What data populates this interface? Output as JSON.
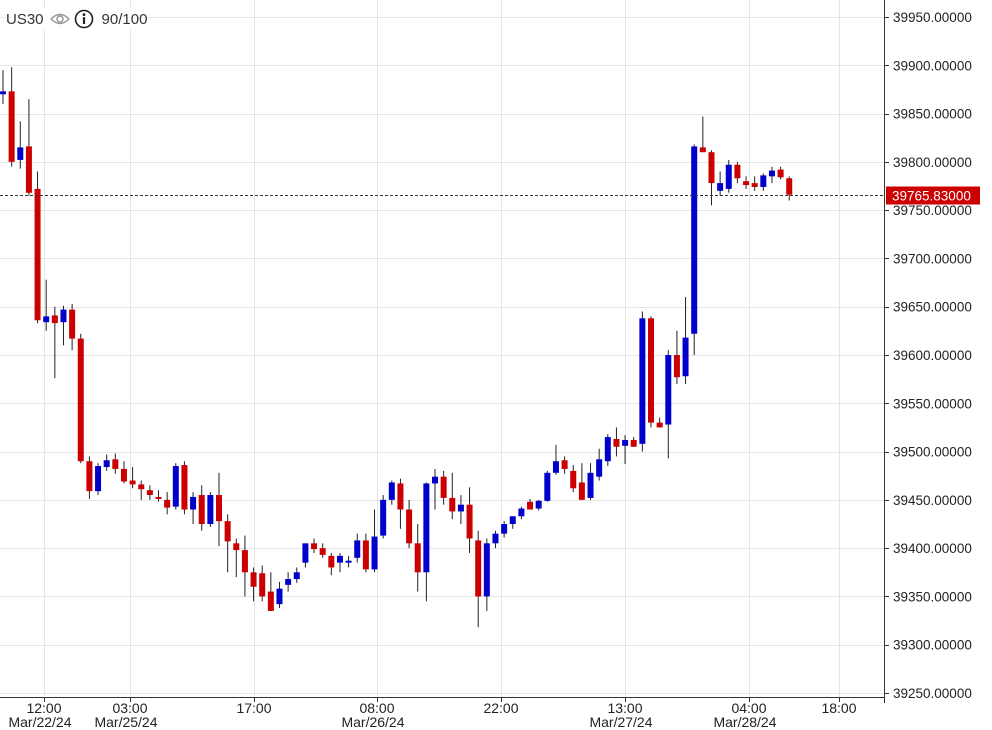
{
  "header": {
    "symbol": "US30",
    "visibility_icon": "eye-icon",
    "info_icon": "info-icon",
    "zoom": "90/100"
  },
  "colors": {
    "up": "#0000cc",
    "down": "#cc0000",
    "grid": "#e6e6e6",
    "price_tag_bg": "#cc0000",
    "price_tag_text": "#ffffff"
  },
  "chart_data": {
    "type": "candlestick",
    "grid": true,
    "ylim": [
      39250,
      39950
    ],
    "y_ticks": [
      "39950.00000",
      "39900.00000",
      "39850.00000",
      "39800.00000",
      "39750.00000",
      "39700.00000",
      "39650.00000",
      "39600.00000",
      "39550.00000",
      "39500.00000",
      "39450.00000",
      "39400.00000",
      "39350.00000",
      "39300.00000",
      "39250.00000"
    ],
    "x_ticks": [
      {
        "time": "12:00",
        "date": "Mar/22/24"
      },
      {
        "time": "03:00",
        "date": "Mar/25/24"
      },
      {
        "time": "17:00",
        "date": ""
      },
      {
        "time": "08:00",
        "date": "Mar/26/24"
      },
      {
        "time": "22:00",
        "date": ""
      },
      {
        "time": "13:00",
        "date": "Mar/27/24"
      },
      {
        "time": "04:00",
        "date": "Mar/28/24"
      },
      {
        "time": "18:00",
        "date": ""
      }
    ],
    "current_price": "39765.83000",
    "candles": [
      {
        "o": 39870,
        "h": 39895,
        "l": 39860,
        "c": 39873
      },
      {
        "o": 39873,
        "h": 39898,
        "l": 39795,
        "c": 39800
      },
      {
        "o": 39802,
        "h": 39842,
        "l": 39793,
        "c": 39815
      },
      {
        "o": 39816,
        "h": 39865,
        "l": 39765,
        "c": 39768
      },
      {
        "o": 39772,
        "h": 39790,
        "l": 39633,
        "c": 39636
      },
      {
        "o": 39634,
        "h": 39678,
        "l": 39625,
        "c": 39640
      },
      {
        "o": 39641,
        "h": 39650,
        "l": 39576,
        "c": 39633
      },
      {
        "o": 39634,
        "h": 39651,
        "l": 39610,
        "c": 39647
      },
      {
        "o": 39647,
        "h": 39653,
        "l": 39605,
        "c": 39617
      },
      {
        "o": 39617,
        "h": 39622,
        "l": 39488,
        "c": 39490
      },
      {
        "o": 39490,
        "h": 39495,
        "l": 39451,
        "c": 39459
      },
      {
        "o": 39459,
        "h": 39488,
        "l": 39455,
        "c": 39485
      },
      {
        "o": 39484,
        "h": 39497,
        "l": 39480,
        "c": 39491
      },
      {
        "o": 39492,
        "h": 39498,
        "l": 39477,
        "c": 39482
      },
      {
        "o": 39482,
        "h": 39490,
        "l": 39467,
        "c": 39469
      },
      {
        "o": 39470,
        "h": 39484,
        "l": 39462,
        "c": 39466
      },
      {
        "o": 39466,
        "h": 39470,
        "l": 39450,
        "c": 39461
      },
      {
        "o": 39460,
        "h": 39465,
        "l": 39450,
        "c": 39455
      },
      {
        "o": 39453,
        "h": 39460,
        "l": 39448,
        "c": 39451
      },
      {
        "o": 39450,
        "h": 39458,
        "l": 39435,
        "c": 39442
      },
      {
        "o": 39443,
        "h": 39488,
        "l": 39440,
        "c": 39485
      },
      {
        "o": 39486,
        "h": 39490,
        "l": 39435,
        "c": 39440
      },
      {
        "o": 39440,
        "h": 39458,
        "l": 39425,
        "c": 39453
      },
      {
        "o": 39455,
        "h": 39465,
        "l": 39418,
        "c": 39425
      },
      {
        "o": 39425,
        "h": 39458,
        "l": 39422,
        "c": 39455
      },
      {
        "o": 39455,
        "h": 39478,
        "l": 39402,
        "c": 39428
      },
      {
        "o": 39428,
        "h": 39435,
        "l": 39375,
        "c": 39407
      },
      {
        "o": 39405,
        "h": 39410,
        "l": 39370,
        "c": 39398
      },
      {
        "o": 39398,
        "h": 39413,
        "l": 39350,
        "c": 39375
      },
      {
        "o": 39375,
        "h": 39380,
        "l": 39345,
        "c": 39360
      },
      {
        "o": 39374,
        "h": 39382,
        "l": 39345,
        "c": 39350
      },
      {
        "o": 39355,
        "h": 39375,
        "l": 39335,
        "c": 39335
      },
      {
        "o": 39342,
        "h": 39365,
        "l": 39338,
        "c": 39358
      },
      {
        "o": 39362,
        "h": 39375,
        "l": 39355,
        "c": 39368
      },
      {
        "o": 39368,
        "h": 39380,
        "l": 39364,
        "c": 39375
      },
      {
        "o": 39385,
        "h": 39405,
        "l": 39380,
        "c": 39405
      },
      {
        "o": 39405,
        "h": 39410,
        "l": 39395,
        "c": 39399
      },
      {
        "o": 39400,
        "h": 39405,
        "l": 39390,
        "c": 39393
      },
      {
        "o": 39392,
        "h": 39395,
        "l": 39372,
        "c": 39380
      },
      {
        "o": 39385,
        "h": 39395,
        "l": 39375,
        "c": 39392
      },
      {
        "o": 39385,
        "h": 39392,
        "l": 39380,
        "c": 39387
      },
      {
        "o": 39390,
        "h": 39415,
        "l": 39385,
        "c": 39408
      },
      {
        "o": 39408,
        "h": 39415,
        "l": 39375,
        "c": 39378
      },
      {
        "o": 39378,
        "h": 39440,
        "l": 39375,
        "c": 39412
      },
      {
        "o": 39413,
        "h": 39455,
        "l": 39410,
        "c": 39450
      },
      {
        "o": 39450,
        "h": 39470,
        "l": 39445,
        "c": 39468
      },
      {
        "o": 39467,
        "h": 39472,
        "l": 39420,
        "c": 39440
      },
      {
        "o": 39440,
        "h": 39450,
        "l": 39400,
        "c": 39405
      },
      {
        "o": 39405,
        "h": 39425,
        "l": 39355,
        "c": 39375
      },
      {
        "o": 39375,
        "h": 39468,
        "l": 39345,
        "c": 39467
      },
      {
        "o": 39467,
        "h": 39482,
        "l": 39440,
        "c": 39474
      },
      {
        "o": 39474,
        "h": 39480,
        "l": 39445,
        "c": 39452
      },
      {
        "o": 39452,
        "h": 39478,
        "l": 39430,
        "c": 39438
      },
      {
        "o": 39438,
        "h": 39455,
        "l": 39425,
        "c": 39445
      },
      {
        "o": 39445,
        "h": 39463,
        "l": 39395,
        "c": 39410
      },
      {
        "o": 39408,
        "h": 39418,
        "l": 39318,
        "c": 39350
      },
      {
        "o": 39350,
        "h": 39410,
        "l": 39335,
        "c": 39405
      },
      {
        "o": 39405,
        "h": 39418,
        "l": 39400,
        "c": 39415
      },
      {
        "o": 39415,
        "h": 39428,
        "l": 39411,
        "c": 39425
      },
      {
        "o": 39425,
        "h": 39433,
        "l": 39420,
        "c": 39433
      },
      {
        "o": 39433,
        "h": 39443,
        "l": 39430,
        "c": 39441
      },
      {
        "o": 39448,
        "h": 39451,
        "l": 39440,
        "c": 39440
      },
      {
        "o": 39441,
        "h": 39450,
        "l": 39439,
        "c": 39449
      },
      {
        "o": 39449,
        "h": 39480,
        "l": 39448,
        "c": 39478
      },
      {
        "o": 39478,
        "h": 39507,
        "l": 39476,
        "c": 39490
      },
      {
        "o": 39491,
        "h": 39495,
        "l": 39477,
        "c": 39482
      },
      {
        "o": 39480,
        "h": 39486,
        "l": 39458,
        "c": 39462
      },
      {
        "o": 39468,
        "h": 39488,
        "l": 39450,
        "c": 39450
      },
      {
        "o": 39452,
        "h": 39488,
        "l": 39450,
        "c": 39478
      },
      {
        "o": 39474,
        "h": 39503,
        "l": 39470,
        "c": 39492
      },
      {
        "o": 39490,
        "h": 39518,
        "l": 39485,
        "c": 39515
      },
      {
        "o": 39513,
        "h": 39525,
        "l": 39495,
        "c": 39505
      },
      {
        "o": 39506,
        "h": 39517,
        "l": 39487,
        "c": 39512
      },
      {
        "o": 39512,
        "h": 39515,
        "l": 39505,
        "c": 39505
      },
      {
        "o": 39508,
        "h": 39645,
        "l": 39500,
        "c": 39638
      },
      {
        "o": 39638,
        "h": 39640,
        "l": 39525,
        "c": 39530
      },
      {
        "o": 39530,
        "h": 39535,
        "l": 39525,
        "c": 39525
      },
      {
        "o": 39528,
        "h": 39605,
        "l": 39493,
        "c": 39600
      },
      {
        "o": 39600,
        "h": 39625,
        "l": 39570,
        "c": 39577
      },
      {
        "o": 39578,
        "h": 39660,
        "l": 39570,
        "c": 39618
      },
      {
        "o": 39622,
        "h": 39818,
        "l": 39600,
        "c": 39816
      },
      {
        "o": 39815,
        "h": 39847,
        "l": 39810,
        "c": 39810
      },
      {
        "o": 39810,
        "h": 39812,
        "l": 39755,
        "c": 39778
      },
      {
        "o": 39770,
        "h": 39790,
        "l": 39765,
        "c": 39778
      },
      {
        "o": 39772,
        "h": 39802,
        "l": 39768,
        "c": 39797
      },
      {
        "o": 39797,
        "h": 39800,
        "l": 39778,
        "c": 39783
      },
      {
        "o": 39780,
        "h": 39785,
        "l": 39772,
        "c": 39776
      },
      {
        "o": 39778,
        "h": 39785,
        "l": 39770,
        "c": 39774
      },
      {
        "o": 39774,
        "h": 39788,
        "l": 39770,
        "c": 39786
      },
      {
        "o": 39785,
        "h": 39795,
        "l": 39778,
        "c": 39791
      },
      {
        "o": 39792,
        "h": 39795,
        "l": 39782,
        "c": 39784
      },
      {
        "o": 39783,
        "h": 39785,
        "l": 39760,
        "c": 39766
      }
    ]
  }
}
